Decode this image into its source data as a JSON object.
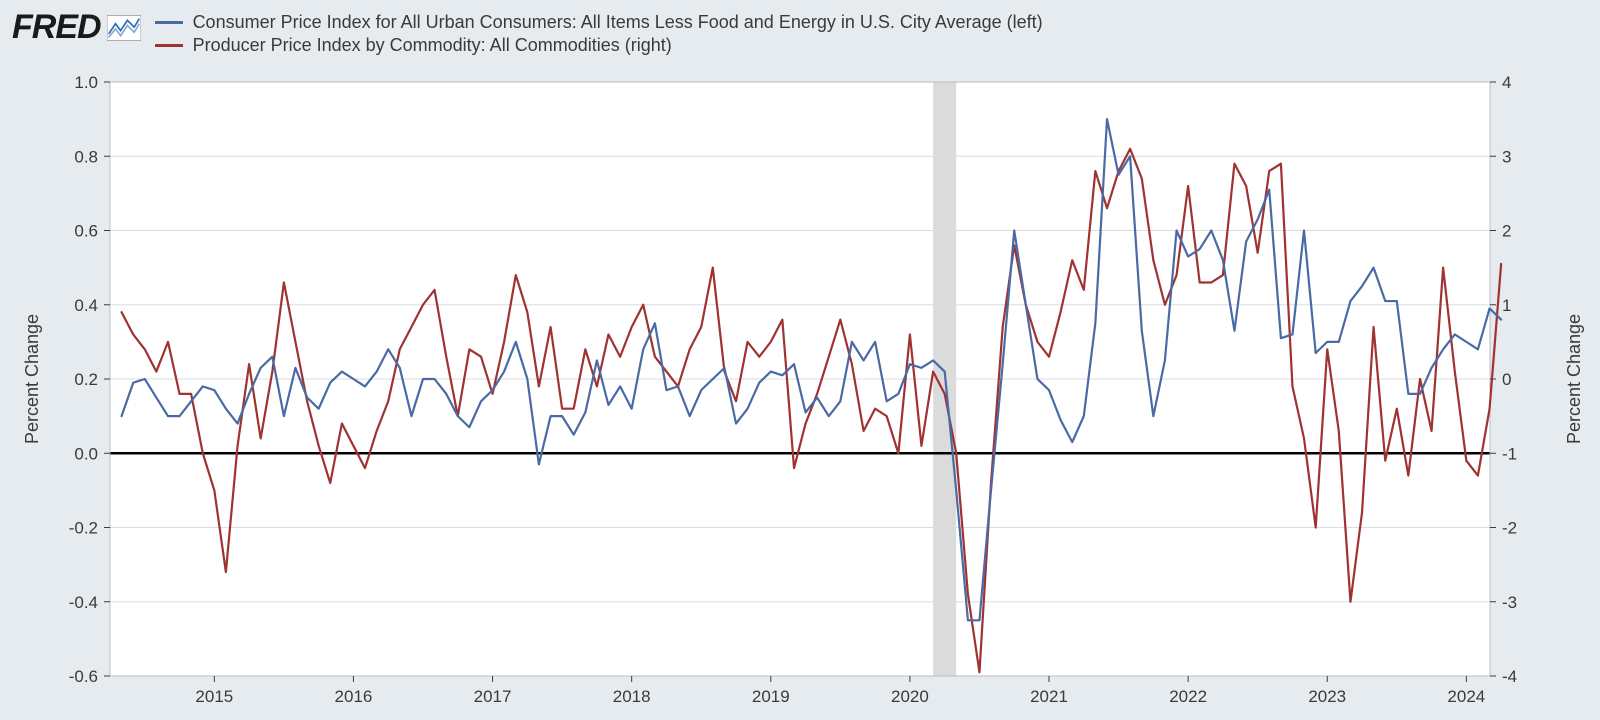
{
  "logo_text": "FRED",
  "legend": {
    "series_a": {
      "label": "Consumer Price Index for All Urban Consumers: All Items Less Food and Energy in U.S. City Average (left)",
      "color": "#4a6aa5"
    },
    "series_b": {
      "label": "Producer Price Index by Commodity: All Commodities (right)",
      "color": "#a03232"
    }
  },
  "chart": {
    "type": "line",
    "background_color": "#ffffff",
    "page_background": "#e6ebf0",
    "grid_color": "#d9dde2",
    "zero_line_color": "#000000",
    "border_color": "#b7bdc4",
    "line_width": 2.2,
    "font_family": "Arial",
    "axis_fontsize": 17,
    "label_fontsize": 18,
    "x": {
      "min": 2014.25,
      "max": 2024.17,
      "ticks": [
        2015,
        2016,
        2017,
        2018,
        2019,
        2020,
        2021,
        2022,
        2023,
        2024
      ],
      "tick_labels": [
        "2015",
        "2016",
        "2017",
        "2018",
        "2019",
        "2020",
        "2021",
        "2022",
        "2023",
        "2024"
      ]
    },
    "y_left": {
      "min": -0.6,
      "max": 1.0,
      "ticks": [
        -0.6,
        -0.4,
        -0.2,
        0.0,
        0.2,
        0.4,
        0.6,
        0.8,
        1.0
      ],
      "tick_labels": [
        "-0.6",
        "-0.4",
        "-0.2",
        "0.0",
        "0.2",
        "0.4",
        "0.6",
        "0.8",
        "1.0"
      ],
      "label": "Percent Change"
    },
    "y_right": {
      "min": -4,
      "max": 4,
      "ticks": [
        -4,
        -3,
        -2,
        -1,
        0,
        1,
        2,
        3,
        4
      ],
      "tick_labels": [
        "-4",
        "-3",
        "-2",
        "-1",
        "0",
        "1",
        "2",
        "3",
        "4"
      ],
      "label": "Percent Change"
    },
    "recession": {
      "start": 2020.167,
      "end": 2020.333
    },
    "series_a": {
      "axis": "left",
      "color": "#4a6aa5",
      "data": [
        [
          2014.333,
          0.1
        ],
        [
          2014.417,
          0.19
        ],
        [
          2014.5,
          0.2
        ],
        [
          2014.583,
          0.15
        ],
        [
          2014.667,
          0.1
        ],
        [
          2014.75,
          0.1
        ],
        [
          2014.833,
          0.14
        ],
        [
          2014.917,
          0.18
        ],
        [
          2015.0,
          0.17
        ],
        [
          2015.083,
          0.12
        ],
        [
          2015.167,
          0.08
        ],
        [
          2015.25,
          0.16
        ],
        [
          2015.333,
          0.23
        ],
        [
          2015.417,
          0.26
        ],
        [
          2015.5,
          0.1
        ],
        [
          2015.583,
          0.23
        ],
        [
          2015.667,
          0.15
        ],
        [
          2015.75,
          0.12
        ],
        [
          2015.833,
          0.19
        ],
        [
          2015.917,
          0.22
        ],
        [
          2016.0,
          0.2
        ],
        [
          2016.083,
          0.18
        ],
        [
          2016.167,
          0.22
        ],
        [
          2016.25,
          0.28
        ],
        [
          2016.333,
          0.23
        ],
        [
          2016.417,
          0.1
        ],
        [
          2016.5,
          0.2
        ],
        [
          2016.583,
          0.2
        ],
        [
          2016.667,
          0.16
        ],
        [
          2016.75,
          0.1
        ],
        [
          2016.833,
          0.07
        ],
        [
          2016.917,
          0.14
        ],
        [
          2017.0,
          0.17
        ],
        [
          2017.083,
          0.22
        ],
        [
          2017.167,
          0.3
        ],
        [
          2017.25,
          0.2
        ],
        [
          2017.333,
          -0.03
        ],
        [
          2017.417,
          0.1
        ],
        [
          2017.5,
          0.1
        ],
        [
          2017.583,
          0.05
        ],
        [
          2017.667,
          0.11
        ],
        [
          2017.75,
          0.25
        ],
        [
          2017.833,
          0.13
        ],
        [
          2017.917,
          0.18
        ],
        [
          2018.0,
          0.12
        ],
        [
          2018.083,
          0.28
        ],
        [
          2018.167,
          0.35
        ],
        [
          2018.25,
          0.17
        ],
        [
          2018.333,
          0.18
        ],
        [
          2018.417,
          0.1
        ],
        [
          2018.5,
          0.17
        ],
        [
          2018.583,
          0.2
        ],
        [
          2018.667,
          0.23
        ],
        [
          2018.75,
          0.08
        ],
        [
          2018.833,
          0.12
        ],
        [
          2018.917,
          0.19
        ],
        [
          2019.0,
          0.22
        ],
        [
          2019.083,
          0.21
        ],
        [
          2019.167,
          0.24
        ],
        [
          2019.25,
          0.11
        ],
        [
          2019.333,
          0.15
        ],
        [
          2019.417,
          0.1
        ],
        [
          2019.5,
          0.14
        ],
        [
          2019.583,
          0.3
        ],
        [
          2019.667,
          0.25
        ],
        [
          2019.75,
          0.3
        ],
        [
          2019.833,
          0.14
        ],
        [
          2019.917,
          0.16
        ],
        [
          2020.0,
          0.24
        ],
        [
          2020.083,
          0.23
        ],
        [
          2020.167,
          0.25
        ],
        [
          2020.25,
          0.22
        ],
        [
          2020.333,
          -0.1
        ],
        [
          2020.417,
          -0.45
        ],
        [
          2020.5,
          -0.45
        ],
        [
          2020.583,
          -0.1
        ],
        [
          2020.667,
          0.24
        ],
        [
          2020.75,
          0.6
        ],
        [
          2020.833,
          0.4
        ],
        [
          2020.917,
          0.2
        ],
        [
          2021.0,
          0.17
        ],
        [
          2021.083,
          0.09
        ],
        [
          2021.167,
          0.03
        ],
        [
          2021.25,
          0.1
        ],
        [
          2021.333,
          0.35
        ],
        [
          2021.417,
          0.9
        ],
        [
          2021.5,
          0.75
        ],
        [
          2021.583,
          0.8
        ],
        [
          2021.667,
          0.33
        ],
        [
          2021.75,
          0.1
        ],
        [
          2021.833,
          0.25
        ],
        [
          2021.917,
          0.6
        ],
        [
          2022.0,
          0.53
        ],
        [
          2022.083,
          0.55
        ],
        [
          2022.167,
          0.6
        ],
        [
          2022.25,
          0.52
        ],
        [
          2022.333,
          0.33
        ],
        [
          2022.417,
          0.57
        ],
        [
          2022.5,
          0.63
        ],
        [
          2022.583,
          0.71
        ],
        [
          2022.667,
          0.31
        ],
        [
          2022.75,
          0.32
        ],
        [
          2022.833,
          0.6
        ],
        [
          2022.917,
          0.27
        ],
        [
          2023.0,
          0.3
        ],
        [
          2023.083,
          0.3
        ],
        [
          2023.167,
          0.41
        ],
        [
          2023.25,
          0.45
        ],
        [
          2023.333,
          0.5
        ],
        [
          2023.417,
          0.41
        ],
        [
          2023.5,
          0.41
        ],
        [
          2023.583,
          0.16
        ],
        [
          2023.667,
          0.16
        ],
        [
          2023.75,
          0.23
        ],
        [
          2023.833,
          0.28
        ],
        [
          2023.917,
          0.32
        ],
        [
          2024.0,
          0.3
        ],
        [
          2024.083,
          0.28
        ],
        [
          2024.167,
          0.39
        ],
        [
          2024.25,
          0.36
        ]
      ]
    },
    "series_b": {
      "axis": "right",
      "color": "#a03232",
      "data": [
        [
          2014.333,
          0.9
        ],
        [
          2014.417,
          0.6
        ],
        [
          2014.5,
          0.4
        ],
        [
          2014.583,
          0.1
        ],
        [
          2014.667,
          0.5
        ],
        [
          2014.75,
          -0.2
        ],
        [
          2014.833,
          -0.2
        ],
        [
          2014.917,
          -1.0
        ],
        [
          2015.0,
          -1.5
        ],
        [
          2015.083,
          -2.6
        ],
        [
          2015.167,
          -0.9
        ],
        [
          2015.25,
          0.2
        ],
        [
          2015.333,
          -0.8
        ],
        [
          2015.417,
          0.1
        ],
        [
          2015.5,
          1.3
        ],
        [
          2015.583,
          0.5
        ],
        [
          2015.667,
          -0.3
        ],
        [
          2015.75,
          -0.9
        ],
        [
          2015.833,
          -1.4
        ],
        [
          2015.917,
          -0.6
        ],
        [
          2016.0,
          -0.9
        ],
        [
          2016.083,
          -1.2
        ],
        [
          2016.167,
          -0.7
        ],
        [
          2016.25,
          -0.3
        ],
        [
          2016.333,
          0.4
        ],
        [
          2016.417,
          0.7
        ],
        [
          2016.5,
          1.0
        ],
        [
          2016.583,
          1.2
        ],
        [
          2016.667,
          0.3
        ],
        [
          2016.75,
          -0.5
        ],
        [
          2016.833,
          0.4
        ],
        [
          2016.917,
          0.3
        ],
        [
          2017.0,
          -0.2
        ],
        [
          2017.083,
          0.5
        ],
        [
          2017.167,
          1.4
        ],
        [
          2017.25,
          0.9
        ],
        [
          2017.333,
          -0.1
        ],
        [
          2017.417,
          0.7
        ],
        [
          2017.5,
          -0.4
        ],
        [
          2017.583,
          -0.4
        ],
        [
          2017.667,
          0.4
        ],
        [
          2017.75,
          -0.1
        ],
        [
          2017.833,
          0.6
        ],
        [
          2017.917,
          0.3
        ],
        [
          2018.0,
          0.7
        ],
        [
          2018.083,
          1.0
        ],
        [
          2018.167,
          0.3
        ],
        [
          2018.25,
          0.1
        ],
        [
          2018.333,
          -0.1
        ],
        [
          2018.417,
          0.4
        ],
        [
          2018.5,
          0.7
        ],
        [
          2018.583,
          1.5
        ],
        [
          2018.667,
          0.1
        ],
        [
          2018.75,
          -0.3
        ],
        [
          2018.833,
          0.5
        ],
        [
          2018.917,
          0.3
        ],
        [
          2019.0,
          0.5
        ],
        [
          2019.083,
          0.8
        ],
        [
          2019.167,
          -1.2
        ],
        [
          2019.25,
          -0.6
        ],
        [
          2019.333,
          -0.2
        ],
        [
          2019.417,
          0.3
        ],
        [
          2019.5,
          0.8
        ],
        [
          2019.583,
          0.2
        ],
        [
          2019.667,
          -0.7
        ],
        [
          2019.75,
          -0.4
        ],
        [
          2019.833,
          -0.5
        ],
        [
          2019.917,
          -1.0
        ],
        [
          2020.0,
          0.6
        ],
        [
          2020.083,
          -0.9
        ],
        [
          2020.167,
          0.1
        ],
        [
          2020.25,
          -0.2
        ],
        [
          2020.333,
          -1.0
        ],
        [
          2020.417,
          -2.9
        ],
        [
          2020.5,
          -3.95
        ],
        [
          2020.583,
          -1.4
        ],
        [
          2020.667,
          0.7
        ],
        [
          2020.75,
          1.8
        ],
        [
          2020.833,
          1.0
        ],
        [
          2020.917,
          0.5
        ],
        [
          2021.0,
          0.3
        ],
        [
          2021.083,
          0.9
        ],
        [
          2021.167,
          1.6
        ],
        [
          2021.25,
          1.2
        ],
        [
          2021.333,
          2.8
        ],
        [
          2021.417,
          2.3
        ],
        [
          2021.5,
          2.8
        ],
        [
          2021.583,
          3.1
        ],
        [
          2021.667,
          2.7
        ],
        [
          2021.75,
          1.6
        ],
        [
          2021.833,
          1.0
        ],
        [
          2021.917,
          1.4
        ],
        [
          2022.0,
          2.6
        ],
        [
          2022.083,
          1.3
        ],
        [
          2022.167,
          1.3
        ],
        [
          2022.25,
          1.4
        ],
        [
          2022.333,
          2.9
        ],
        [
          2022.417,
          2.6
        ],
        [
          2022.5,
          1.7
        ],
        [
          2022.583,
          2.8
        ],
        [
          2022.667,
          2.9
        ],
        [
          2022.75,
          -0.1
        ],
        [
          2022.833,
          -0.8
        ],
        [
          2022.917,
          -2.0
        ],
        [
          2023.0,
          0.4
        ],
        [
          2023.083,
          -0.7
        ],
        [
          2023.167,
          -3.0
        ],
        [
          2023.25,
          -1.8
        ],
        [
          2023.333,
          0.7
        ],
        [
          2023.417,
          -1.1
        ],
        [
          2023.5,
          -0.4
        ],
        [
          2023.583,
          -1.3
        ],
        [
          2023.667,
          0.0
        ],
        [
          2023.75,
          -0.7
        ],
        [
          2023.833,
          1.5
        ],
        [
          2023.917,
          0.1
        ],
        [
          2024.0,
          -1.1
        ],
        [
          2024.083,
          -1.3
        ],
        [
          2024.167,
          -0.4
        ],
        [
          2024.25,
          1.55
        ]
      ]
    }
  }
}
